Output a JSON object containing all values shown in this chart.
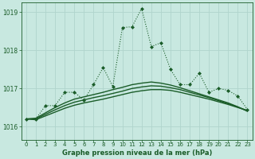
{
  "title": "Graphe pression niveau de la mer (hPa)",
  "background_color": "#c8e8e0",
  "grid_color": "#b0d4cc",
  "line_color": "#1a5c28",
  "x_min": 0,
  "x_max": 23,
  "y_min": 1015.65,
  "y_max": 1019.25,
  "y_ticks": [
    1016,
    1017,
    1018,
    1019
  ],
  "x_ticks": [
    0,
    1,
    2,
    3,
    4,
    5,
    6,
    7,
    8,
    9,
    10,
    11,
    12,
    13,
    14,
    15,
    16,
    17,
    18,
    19,
    20,
    21,
    22,
    23
  ],
  "main_x": [
    0,
    1,
    2,
    3,
    4,
    5,
    6,
    7,
    8,
    9,
    10,
    11,
    12,
    13,
    14,
    15,
    16,
    17,
    18,
    19,
    20,
    21,
    22,
    23
  ],
  "main_y": [
    1016.2,
    1016.2,
    1016.55,
    1016.55,
    1016.9,
    1016.9,
    1016.7,
    1017.1,
    1017.55,
    1017.05,
    1018.6,
    1018.62,
    1019.1,
    1018.1,
    1018.2,
    1017.5,
    1017.1,
    1017.1,
    1017.4,
    1016.9,
    1017.0,
    1016.95,
    1016.8,
    1016.45
  ],
  "smooth1_y": [
    1016.2,
    1016.18,
    1016.28,
    1016.38,
    1016.48,
    1016.56,
    1016.62,
    1016.67,
    1016.72,
    1016.78,
    1016.84,
    1016.9,
    1016.94,
    1016.97,
    1016.97,
    1016.95,
    1016.9,
    1016.84,
    1016.78,
    1016.72,
    1016.65,
    1016.58,
    1016.5,
    1016.42
  ],
  "smooth2_y": [
    1016.2,
    1016.2,
    1016.32,
    1016.44,
    1016.55,
    1016.64,
    1016.7,
    1016.76,
    1016.81,
    1016.87,
    1016.93,
    1017.0,
    1017.04,
    1017.07,
    1017.06,
    1017.02,
    1016.97,
    1016.9,
    1016.83,
    1016.76,
    1016.68,
    1016.6,
    1016.51,
    1016.42
  ],
  "smooth3_y": [
    1016.2,
    1016.22,
    1016.36,
    1016.5,
    1016.62,
    1016.72,
    1016.78,
    1016.84,
    1016.9,
    1016.97,
    1017.03,
    1017.1,
    1017.14,
    1017.17,
    1017.14,
    1017.09,
    1017.02,
    1016.94,
    1016.86,
    1016.78,
    1016.7,
    1016.62,
    1016.52,
    1016.4
  ]
}
